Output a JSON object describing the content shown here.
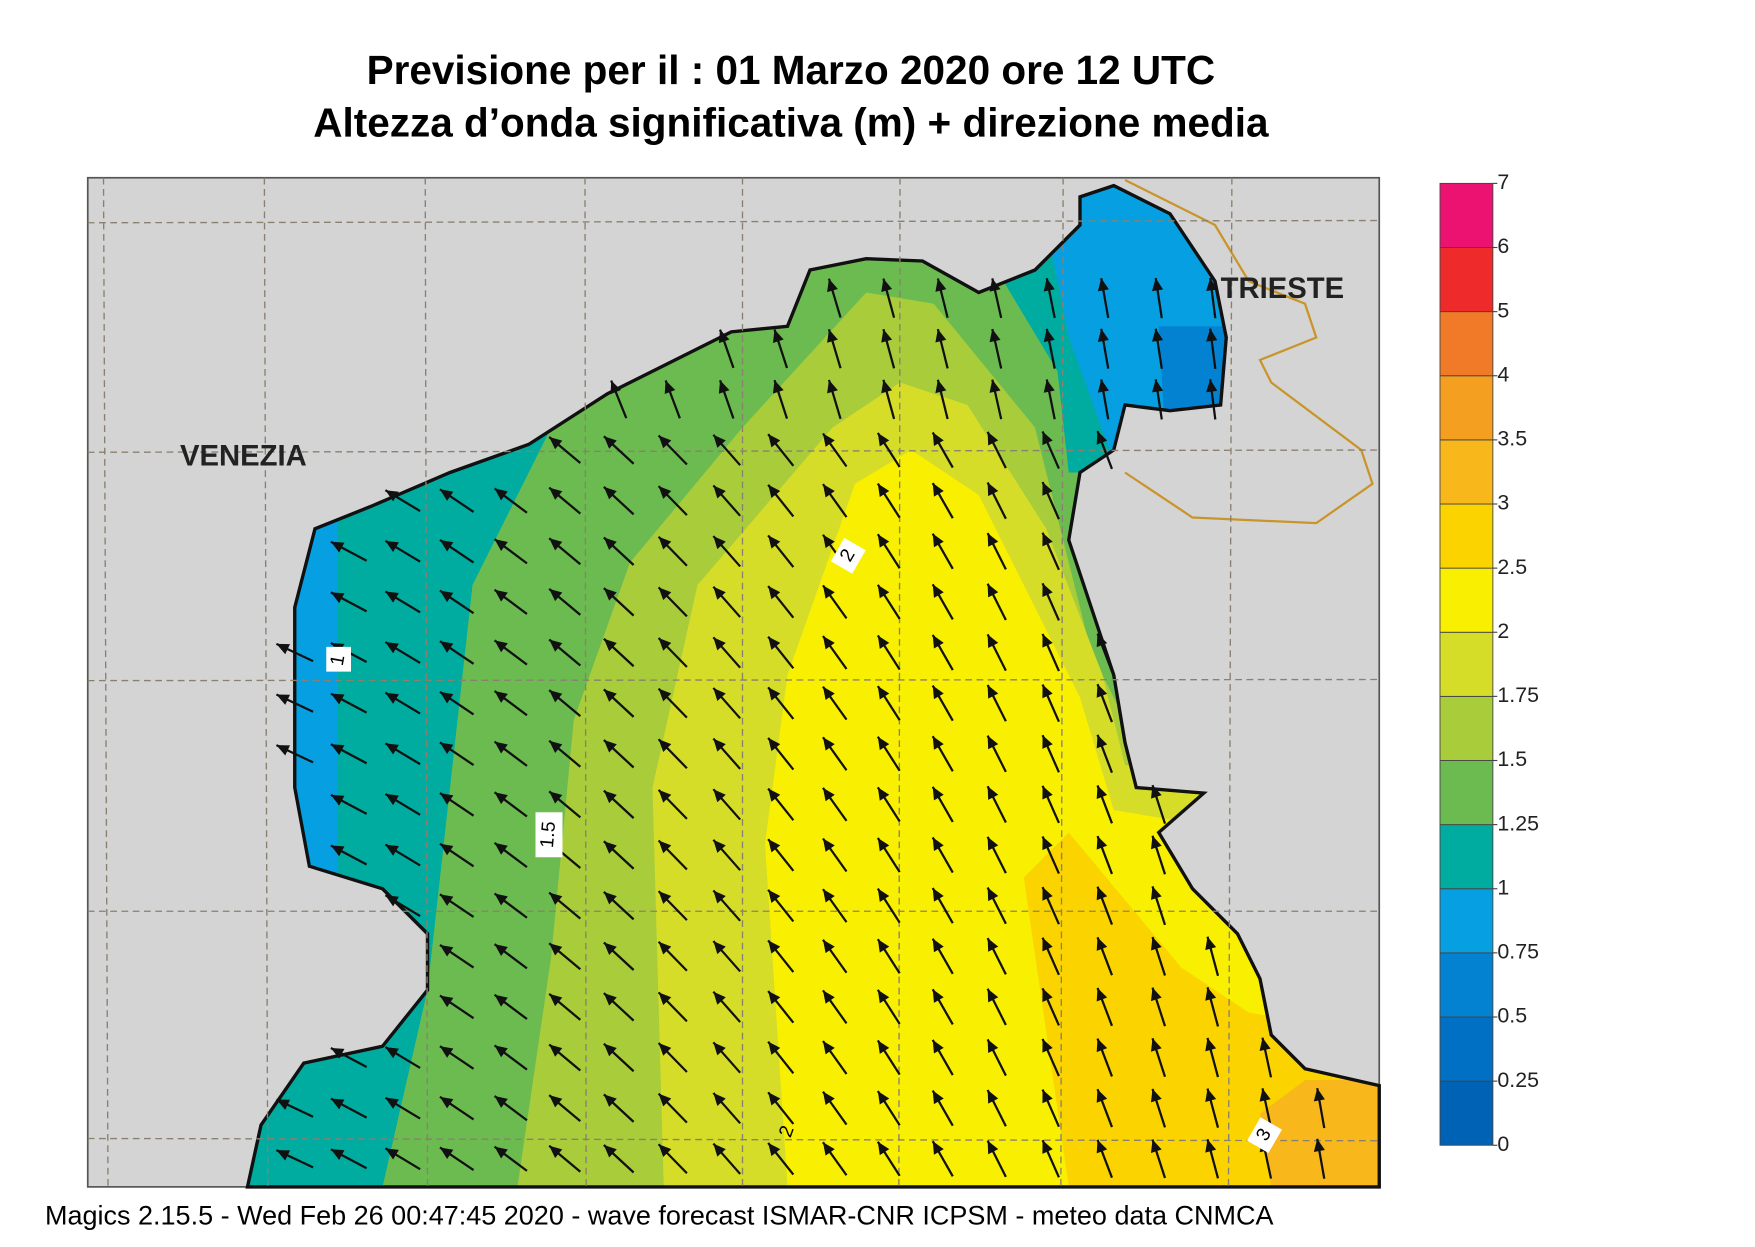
{
  "header": {
    "title": "Previsione per il  :  01   Marzo   2020   ore 12 UTC",
    "subtitle": "Altezza d’onda significativa (m) + direzione media"
  },
  "places": [
    "VENEZIA",
    "TRIESTE"
  ],
  "contour_labels": [
    1,
    1.5,
    2,
    2,
    3
  ],
  "colorbar": {
    "ticks": [
      0,
      0.25,
      0.5,
      0.75,
      1,
      1.25,
      1.5,
      1.75,
      2,
      2.5,
      3,
      3.5,
      4,
      5,
      6,
      7
    ],
    "colors": [
      "#0062b4",
      "#0070c4",
      "#0482d2",
      "#06a0e2",
      "#00ab9f",
      "#6cbb50",
      "#a9cc3a",
      "#d5dd28",
      "#f9ef00",
      "#fbd400",
      "#f8b81c",
      "#f59f20",
      "#f07a28",
      "#ee2a2a",
      "#ec1272"
    ]
  },
  "footer": "Magics 2.15.5 - Wed Feb 26 00:47:45 2020 - wave forecast  ISMAR-CNR  ICPSM - meteo data   CNMCA"
}
